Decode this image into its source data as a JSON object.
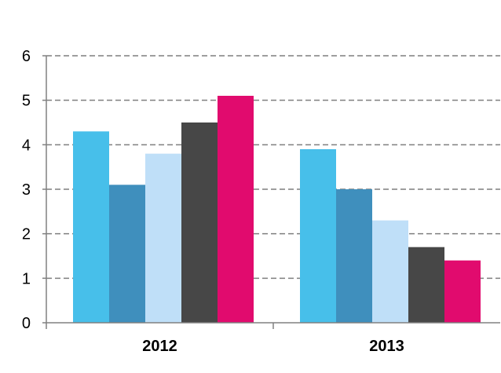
{
  "chart_data": {
    "type": "bar",
    "categories": [
      "2012",
      "2013"
    ],
    "series": [
      {
        "values": [
          4.3,
          3.9
        ],
        "color": "#47bfea"
      },
      {
        "values": [
          3.1,
          3.0
        ],
        "color": "#3f8fbd"
      },
      {
        "values": [
          3.8,
          2.3
        ],
        "color": "#bfdff8"
      },
      {
        "values": [
          4.5,
          1.7
        ],
        "color": "#474747"
      },
      {
        "values": [
          5.1,
          1.4
        ],
        "color": "#e10b6e"
      }
    ],
    "yticks": [
      "0",
      "1",
      "2",
      "3",
      "4",
      "5",
      "6"
    ],
    "ylim": [
      0,
      6
    ],
    "grid": true,
    "legend": "none"
  }
}
